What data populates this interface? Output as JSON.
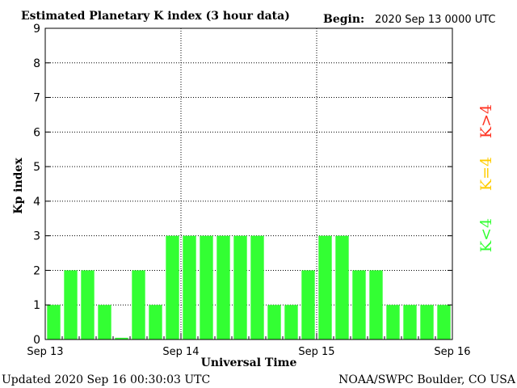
{
  "chart_data": {
    "type": "bar",
    "title": "Estimated Planetary K index (3 hour data)",
    "begin_label": "Begin:",
    "begin_value": "2020 Sep 13 0000 UTC",
    "xlabel": "Universal Time",
    "ylabel": "Kp index",
    "ylim": [
      0,
      9
    ],
    "yticks": [
      "0",
      "1",
      "2",
      "3",
      "4",
      "5",
      "6",
      "7",
      "8",
      "9"
    ],
    "xticks": [
      "Sep 13",
      "Sep 14",
      "Sep 15",
      "Sep 16"
    ],
    "grid": true,
    "bar_color": "#33ff33",
    "values": [
      1,
      2,
      2,
      1,
      0.05,
      2,
      1,
      3,
      3,
      3,
      3,
      3,
      3,
      1,
      1,
      2,
      3,
      3,
      2,
      2,
      1,
      1,
      1,
      1
    ],
    "legend": {
      "placement": "right",
      "items": [
        {
          "label": "K>4",
          "color": "#ff3322"
        },
        {
          "label": "K=4",
          "color": "#ffcc00"
        },
        {
          "label": "K<4",
          "color": "#33ff33"
        }
      ]
    }
  },
  "footer": {
    "updated": "Updated 2020 Sep 16 00:30:03 UTC",
    "source": "NOAA/SWPC Boulder, CO USA"
  }
}
